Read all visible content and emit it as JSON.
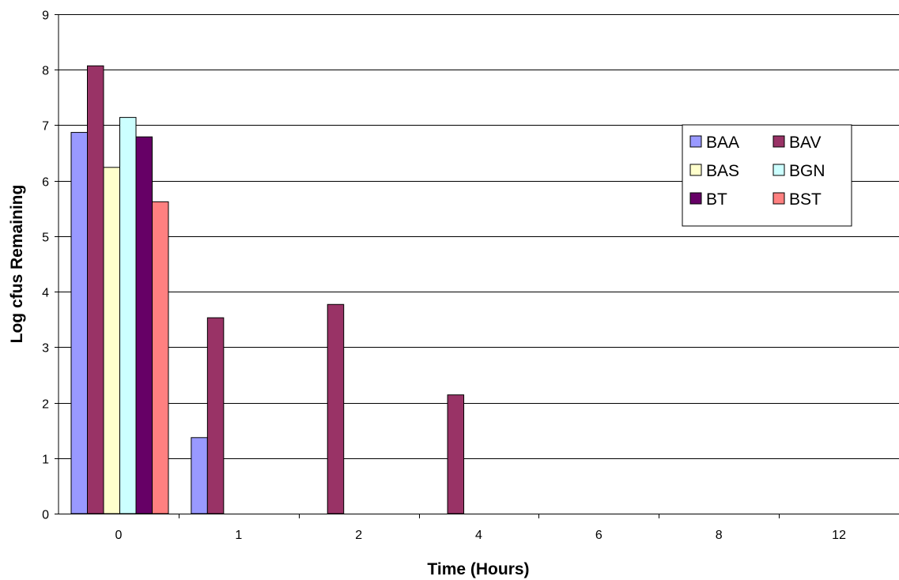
{
  "chart_data": {
    "type": "bar",
    "title": "",
    "xlabel": "Time (Hours)",
    "ylabel": "Log cfus Remaining",
    "categories": [
      "0",
      "1",
      "2",
      "4",
      "6",
      "8",
      "12"
    ],
    "ylim": [
      0,
      9
    ],
    "yticks": [
      "0",
      "1",
      "2",
      "3",
      "4",
      "5",
      "6",
      "7",
      "8",
      "9"
    ],
    "grid": true,
    "legend_position": "right",
    "series": [
      {
        "name": "BAA",
        "color": "#9999ff",
        "values": [
          6.87,
          1.37,
          0,
          0,
          0,
          0,
          0
        ]
      },
      {
        "name": "BAV",
        "color": "#993366",
        "values": [
          8.07,
          3.53,
          3.77,
          2.14,
          0,
          0,
          0
        ]
      },
      {
        "name": "BAS",
        "color": "#ffffcc",
        "values": [
          6.24,
          0,
          0,
          0,
          0,
          0,
          0
        ]
      },
      {
        "name": "BGN",
        "color": "#ccffff",
        "values": [
          7.14,
          0,
          0,
          0,
          0,
          0,
          0
        ]
      },
      {
        "name": "BT",
        "color": "#660066",
        "values": [
          6.79,
          0,
          0,
          0,
          0,
          0,
          0
        ]
      },
      {
        "name": "BST",
        "color": "#ff8080",
        "values": [
          5.62,
          0,
          0,
          0,
          0,
          0,
          0
        ]
      }
    ]
  }
}
